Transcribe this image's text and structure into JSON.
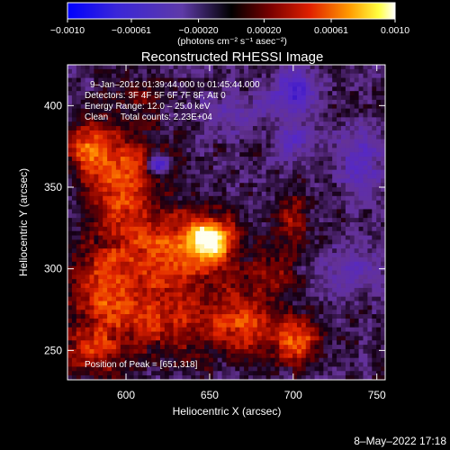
{
  "chart_data": {
    "type": "heatmap",
    "title": "Reconstructed RHESSI Image",
    "xlabel": "Heliocentric X (arcsec)",
    "ylabel": "Heliocentric Y (arcsec)",
    "xlim": [
      565,
      755
    ],
    "ylim": [
      232,
      425
    ],
    "x_ticks": [
      600,
      650,
      700,
      750
    ],
    "y_ticks": [
      250,
      300,
      350,
      400
    ],
    "colorbar": {
      "range": [
        -0.001,
        0.001
      ],
      "tick_values": [
        -0.001,
        -0.00061,
        -0.0002,
        0.0002,
        0.00061,
        0.001
      ],
      "tick_labels": [
        "−0.0010",
        "−0.00061",
        "−0.00020",
        "0.00020",
        "0.00061",
        "0.0010"
      ],
      "unit_label": "(photons cm⁻² s⁻¹ asec⁻²)"
    },
    "annotations": [
      "9–Jan–2012 01:39:44.000 to 01:45:44.000",
      "Detectors: 3F 4F 5F 6F 7F 8F, Att 0",
      "Energy Range: 12.0 – 25.0 keV",
      "Clean     Total counts: 2.23E+04"
    ],
    "peak_label": "Position of Peak = [651,318]",
    "peak": [
      651,
      318
    ],
    "grid": false,
    "sources": [
      {
        "x": 651,
        "y": 318,
        "sx": 9,
        "sy": 8,
        "amp": 1.0
      },
      {
        "x": 632,
        "y": 312,
        "sx": 22,
        "sy": 17,
        "amp": 0.62
      },
      {
        "x": 597,
        "y": 355,
        "sx": 16,
        "sy": 24,
        "amp": 0.62
      },
      {
        "x": 577,
        "y": 375,
        "sx": 9,
        "sy": 11,
        "amp": 0.5
      },
      {
        "x": 588,
        "y": 290,
        "sx": 14,
        "sy": 18,
        "amp": 0.5
      },
      {
        "x": 620,
        "y": 270,
        "sx": 28,
        "sy": 16,
        "amp": 0.46
      },
      {
        "x": 672,
        "y": 266,
        "sx": 16,
        "sy": 14,
        "amp": 0.5
      },
      {
        "x": 703,
        "y": 255,
        "sx": 9,
        "sy": 10,
        "amp": 0.62
      },
      {
        "x": 578,
        "y": 248,
        "sx": 14,
        "sy": 10,
        "amp": 0.46
      },
      {
        "x": 700,
        "y": 330,
        "sx": 8,
        "sy": 12,
        "amp": 0.34
      },
      {
        "x": 688,
        "y": 298,
        "sx": 10,
        "sy": 10,
        "amp": 0.32
      },
      {
        "x": 610,
        "y": 405,
        "sx": 8,
        "sy": 6,
        "amp": 0.22
      }
    ],
    "negative_sources": [
      {
        "x": 701,
        "y": 409,
        "sx": 10,
        "sy": 10,
        "amp": 0.55
      },
      {
        "x": 700,
        "y": 378,
        "sx": 8,
        "sy": 8,
        "amp": 0.4
      },
      {
        "x": 619,
        "y": 364,
        "sx": 4,
        "sy": 4,
        "amp": 0.9
      },
      {
        "x": 740,
        "y": 365,
        "sx": 10,
        "sy": 14,
        "amp": 0.38
      },
      {
        "x": 735,
        "y": 300,
        "sx": 12,
        "sy": 12,
        "amp": 0.3
      },
      {
        "x": 665,
        "y": 395,
        "sx": 14,
        "sy": 8,
        "amp": 0.3
      }
    ]
  },
  "timestamp": "8–May–2022 17:18"
}
